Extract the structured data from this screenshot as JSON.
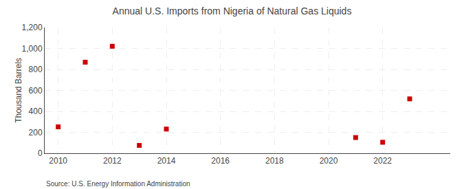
{
  "chart_data": {
    "type": "scatter",
    "title": "Annual U.S. Imports from Nigeria of Natural Gas Liquids",
    "ylabel": "Thousand Barrels",
    "x": [
      2010,
      2011,
      2012,
      2013,
      2014,
      2021,
      2022,
      2023
    ],
    "values": [
      252,
      869,
      1021,
      75,
      231,
      150,
      105,
      519
    ],
    "color": "#cc0000",
    "marker": "square",
    "xlim": [
      2009.5,
      2024.5
    ],
    "xticks": [
      2010,
      2012,
      2014,
      2016,
      2018,
      2020,
      2022
    ],
    "ylim": [
      0,
      1200
    ],
    "yticks": [
      0,
      200,
      400,
      600,
      800,
      {
        "value": 1000,
        "label": "1,000"
      },
      {
        "value": 1200,
        "label": "1,200"
      }
    ],
    "grid": true,
    "annotations": [
      "Source: U.S. Energy Information Administration"
    ]
  }
}
